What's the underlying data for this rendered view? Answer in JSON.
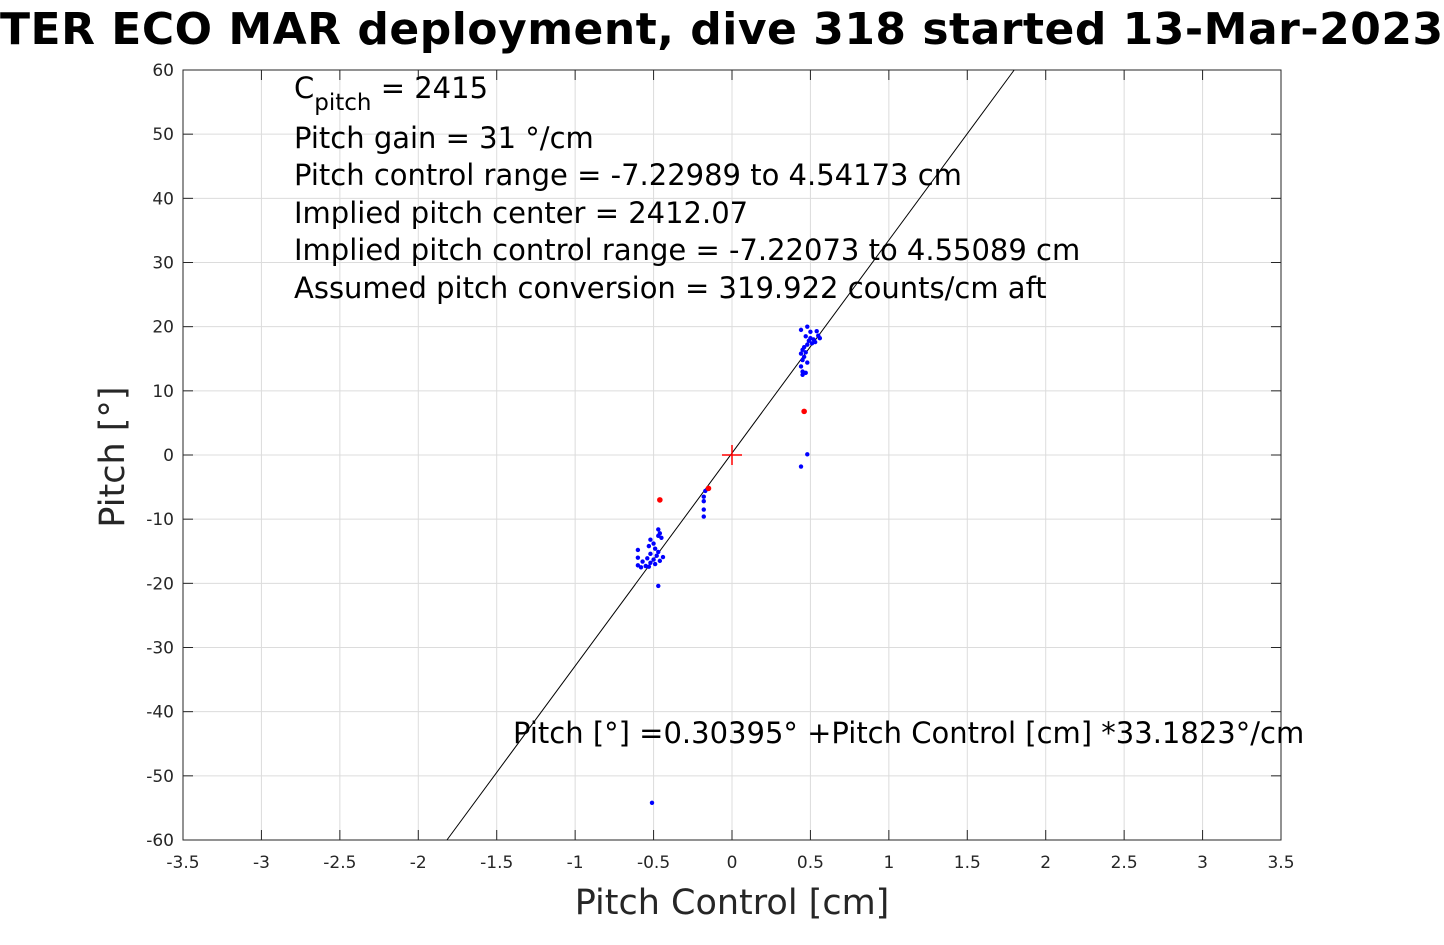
{
  "chart_data": {
    "type": "scatter",
    "title": "TER ECO MAR deployment, dive 318 started 13-Mar-2023",
    "xlabel": "Pitch Control [cm]",
    "ylabel": "Pitch [°]",
    "xlim": [
      -3.5,
      3.5
    ],
    "ylim": [
      -60,
      60
    ],
    "x_ticks": [
      "-3.5",
      "-3",
      "-2.5",
      "-2",
      "-1.5",
      "-1",
      "-0.5",
      "0",
      "0.5",
      "1",
      "1.5",
      "2",
      "2.5",
      "3",
      "3.5"
    ],
    "y_ticks": [
      "60",
      "50",
      "40",
      "30",
      "20",
      "10",
      "0",
      "-10",
      "-20",
      "-30",
      "-40",
      "-50",
      "-60"
    ],
    "grid": true,
    "colors": {
      "points": "#0000ff",
      "outliers": "#ff0000",
      "fit": "#000000",
      "center": "#ff0000"
    },
    "annotations": {
      "cpitch_symbol": "C",
      "cpitch_sub": "pitch",
      "cpitch_value": " = 2415",
      "gain": "Pitch gain = 31 °/cm",
      "range": "Pitch control range = -7.22989 to 4.54173 cm",
      "center": "Implied pitch center = 2412.07",
      "implied_range": "Implied pitch control range = -7.22073 to 4.55089 cm",
      "conversion": "Assumed pitch conversion = 319.922 counts/cm aft",
      "fit_equation": "Pitch [°] =0.30395° +Pitch Control [cm] *33.1823°/cm"
    },
    "fit_line": {
      "intercept": 0.30395,
      "slope": 33.1823
    },
    "center_marker": {
      "x": 0,
      "y": 0
    },
    "series": [
      {
        "points": [
          [
            0.44,
            19.5
          ],
          [
            0.48,
            20
          ],
          [
            0.5,
            19.2
          ],
          [
            0.47,
            18.5
          ],
          [
            0.54,
            19.3
          ],
          [
            0.55,
            18.6
          ],
          [
            0.5,
            18.2
          ],
          [
            0.52,
            18.0
          ],
          [
            0.53,
            17.6
          ],
          [
            0.49,
            17.8
          ],
          [
            0.48,
            17.2
          ],
          [
            0.51,
            17.4
          ],
          [
            0.46,
            16.8
          ],
          [
            0.45,
            16.4
          ],
          [
            0.47,
            16.0
          ],
          [
            0.44,
            15.8
          ],
          [
            0.46,
            15.3
          ],
          [
            0.45,
            14.8
          ],
          [
            0.48,
            14.4
          ],
          [
            0.44,
            13.8
          ],
          [
            0.45,
            13.0
          ],
          [
            0.47,
            12.8
          ],
          [
            0.45,
            12.5
          ],
          [
            0.56,
            18.2
          ],
          [
            0.48,
            0.1
          ],
          [
            0.44,
            -1.8
          ],
          [
            -0.17,
            -5.6
          ],
          [
            -0.18,
            -6.5
          ],
          [
            -0.18,
            -7.2
          ],
          [
            -0.18,
            -8.5
          ],
          [
            -0.18,
            -9.6
          ],
          [
            -0.47,
            -11.6
          ],
          [
            -0.46,
            -12.2
          ],
          [
            -0.47,
            -12.6
          ],
          [
            -0.45,
            -12.9
          ],
          [
            -0.52,
            -13.2
          ],
          [
            -0.5,
            -13.8
          ],
          [
            -0.53,
            -14.2
          ],
          [
            -0.49,
            -14.6
          ],
          [
            -0.6,
            -14.8
          ],
          [
            -0.47,
            -15.1
          ],
          [
            -0.52,
            -15.4
          ],
          [
            -0.48,
            -15.7
          ],
          [
            -0.44,
            -15.9
          ],
          [
            -0.6,
            -16.0
          ],
          [
            -0.54,
            -16.1
          ],
          [
            -0.5,
            -16.3
          ],
          [
            -0.46,
            -16.5
          ],
          [
            -0.57,
            -16.6
          ],
          [
            -0.52,
            -16.8
          ],
          [
            -0.49,
            -17.0
          ],
          [
            -0.6,
            -17.2
          ],
          [
            -0.55,
            -17.3
          ],
          [
            -0.58,
            -17.5
          ],
          [
            -0.53,
            -17.4
          ],
          [
            -0.47,
            -20.4
          ],
          [
            -0.51,
            -54.2
          ]
        ]
      },
      {
        "points": [
          [
            0.46,
            6.8
          ],
          [
            -0.46,
            -7.0
          ],
          [
            -0.15,
            -5.2
          ]
        ]
      }
    ]
  }
}
